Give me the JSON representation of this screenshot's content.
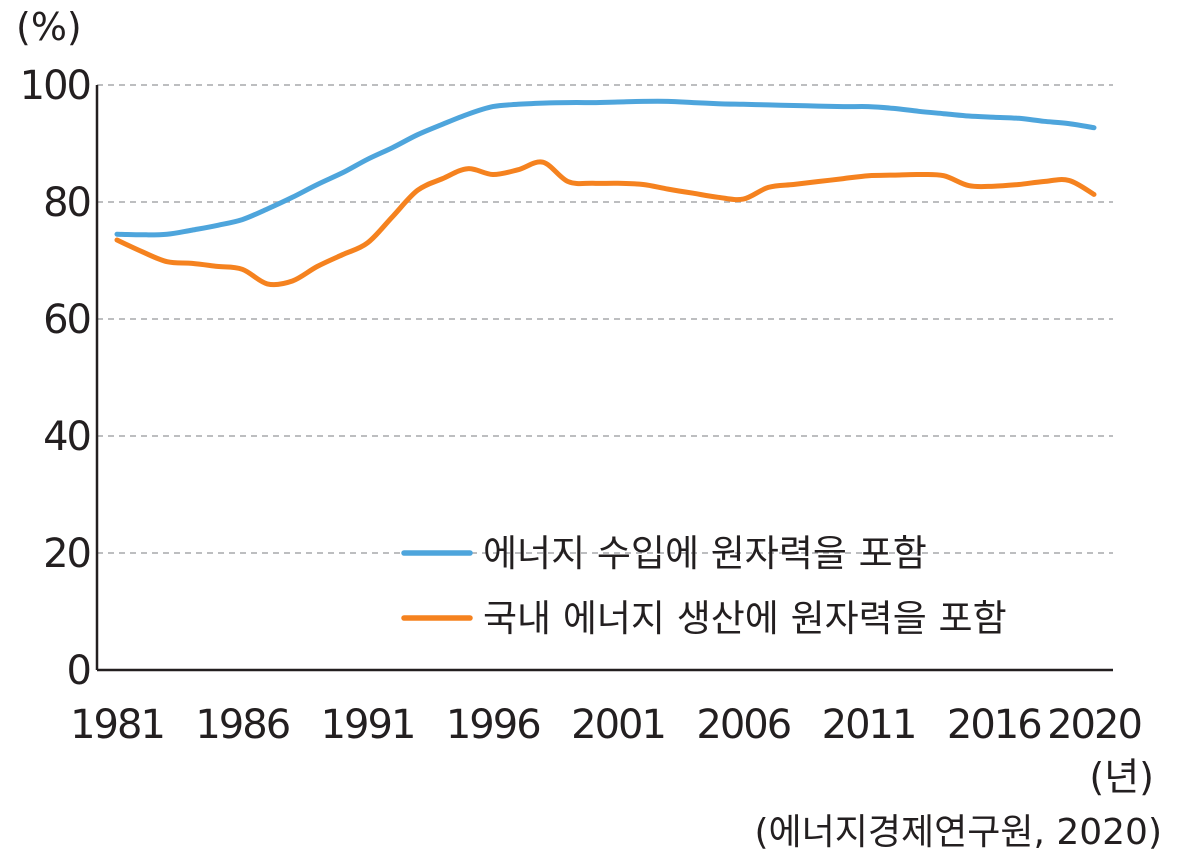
{
  "chart_data": {
    "type": "line",
    "y_unit_label": "(%)",
    "x_unit_label": "(년)",
    "source": "(에너지경제연구원, 2020)",
    "ylim": [
      0,
      100
    ],
    "xlim": [
      1981,
      2020
    ],
    "y_ticks": [
      "0",
      "20",
      "40",
      "60",
      "80",
      "100"
    ],
    "x_ticks": [
      "1981",
      "1986",
      "1991",
      "1996",
      "2001",
      "2006",
      "2011",
      "2016",
      "2020"
    ],
    "grid": "horizontal dashed",
    "legend_position": "bottom-right",
    "series": [
      {
        "name": "에너지 수입에 원자력을 포함",
        "color": "#4ea5dc",
        "x": [
          1981,
          1982,
          1983,
          1984,
          1985,
          1986,
          1987,
          1988,
          1989,
          1990,
          1991,
          1992,
          1993,
          1994,
          1995,
          1996,
          1997,
          1998,
          1999,
          2000,
          2001,
          2002,
          2003,
          2004,
          2005,
          2006,
          2007,
          2008,
          2009,
          2010,
          2011,
          2012,
          2013,
          2014,
          2015,
          2016,
          2017,
          2018,
          2019,
          2020
        ],
        "values": [
          74.5,
          74.4,
          74.5,
          75.2,
          76.0,
          77.0,
          78.8,
          80.8,
          83.0,
          85.0,
          87.3,
          89.3,
          91.5,
          93.3,
          95.0,
          96.3,
          96.7,
          96.9,
          97.0,
          97.0,
          97.1,
          97.2,
          97.2,
          97.0,
          96.8,
          96.7,
          96.6,
          96.5,
          96.4,
          96.3,
          96.3,
          96.0,
          95.5,
          95.1,
          94.7,
          94.5,
          94.3,
          93.8,
          93.4,
          92.7
        ]
      },
      {
        "name": "국내 에너지 생산에 원자력을 포함",
        "color": "#f5821f",
        "x": [
          1981,
          1982,
          1983,
          1984,
          1985,
          1986,
          1987,
          1988,
          1989,
          1990,
          1991,
          1992,
          1993,
          1994,
          1995,
          1996,
          1997,
          1998,
          1999,
          2000,
          2001,
          2002,
          2003,
          2004,
          2005,
          2006,
          2007,
          2008,
          2009,
          2010,
          2011,
          2012,
          2013,
          2014,
          2015,
          2016,
          2017,
          2018,
          2019,
          2020
        ],
        "values": [
          73.5,
          71.5,
          69.8,
          69.5,
          69.0,
          68.5,
          66.0,
          66.5,
          69.0,
          71.0,
          73.0,
          77.5,
          82.0,
          84.0,
          85.7,
          84.7,
          85.5,
          86.8,
          83.5,
          83.2,
          83.2,
          83.0,
          82.2,
          81.5,
          80.8,
          80.5,
          82.5,
          83.0,
          83.5,
          84.0,
          84.5,
          84.6,
          84.7,
          84.5,
          82.8,
          82.7,
          83.0,
          83.5,
          83.7,
          81.3
        ]
      }
    ]
  }
}
